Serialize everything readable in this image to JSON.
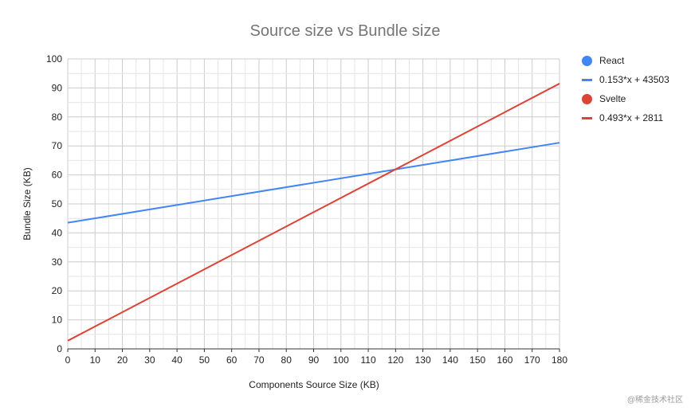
{
  "chart_data": {
    "type": "line",
    "title": "Source size vs Bundle size",
    "xlabel": "Components Source Size (KB)",
    "ylabel": "Bundle Size (KB)",
    "xlim": [
      0,
      180
    ],
    "ylim": [
      0,
      100
    ],
    "x_ticks": [
      "0",
      "10",
      "20",
      "30",
      "40",
      "50",
      "60",
      "70",
      "80",
      "90",
      "100",
      "110",
      "120",
      "130",
      "140",
      "150",
      "160",
      "170",
      "180"
    ],
    "y_ticks": [
      "0",
      "10",
      "20",
      "30",
      "40",
      "50",
      "60",
      "70",
      "80",
      "90",
      "100"
    ],
    "grid": true,
    "legend_position": "right",
    "series": [
      {
        "name": "React",
        "color": "#4285f4",
        "x": [
          0,
          180
        ],
        "y": [
          43.5,
          71.1
        ]
      },
      {
        "name": "Svelte",
        "color": "#db4437",
        "x": [
          0,
          180
        ],
        "y": [
          2.8,
          91.5
        ]
      }
    ],
    "legend": [
      {
        "label": "React",
        "kind": "dot",
        "color": "#4285f4"
      },
      {
        "label": "0.153*x + 43503",
        "kind": "line",
        "color": "#4285f4"
      },
      {
        "label": "Svelte",
        "kind": "dot",
        "color": "#db4437"
      },
      {
        "label": "0.493*x + 2811",
        "kind": "line",
        "color": "#db4437"
      }
    ]
  },
  "watermark": "@稀金技术社区"
}
